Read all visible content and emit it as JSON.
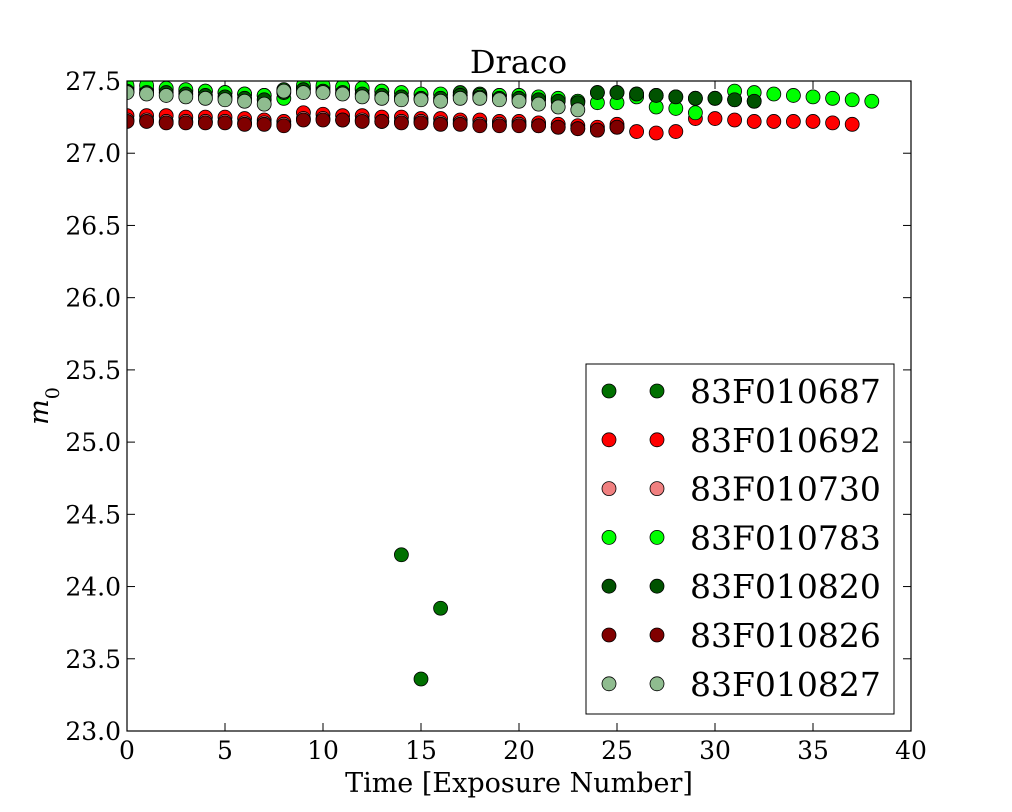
{
  "chart_data": {
    "type": "scatter",
    "title": "Draco",
    "xlabel": "Time [Exposure Number]",
    "ylabel": "m",
    "ylabel_subscript": "0",
    "xlim": [
      0,
      40
    ],
    "ylim": [
      23.0,
      27.5
    ],
    "xticks": [
      "0",
      "5",
      "10",
      "15",
      "20",
      "25",
      "30",
      "35",
      "40"
    ],
    "yticks": [
      "23.0",
      "23.5",
      "24.0",
      "24.5",
      "25.0",
      "25.5",
      "26.0",
      "26.5",
      "27.0",
      "27.5"
    ],
    "grid": false,
    "legend_position": "bottom-right",
    "series": [
      {
        "name": "83F010687",
        "color": "#007000",
        "x": [
          0,
          1,
          2,
          3,
          4,
          5,
          6,
          7,
          8,
          9,
          10,
          11,
          12,
          13,
          14,
          15,
          16,
          17,
          18,
          19,
          20,
          21,
          22,
          23,
          24,
          25,
          26,
          27,
          28,
          29,
          30,
          31,
          32
        ],
        "y": [
          27.45,
          27.44,
          27.44,
          27.43,
          27.43,
          27.42,
          27.41,
          27.4,
          27.44,
          27.45,
          27.45,
          27.44,
          27.44,
          27.43,
          24.22,
          23.36,
          23.85,
          27.42,
          27.41,
          27.4,
          27.4,
          27.38,
          27.37,
          27.36,
          27.42,
          27.42,
          27.41,
          27.4,
          27.39,
          27.38,
          27.38,
          27.37,
          27.36
        ]
      },
      {
        "name": "83F010692",
        "color": "#ff0000",
        "x": [
          0,
          1,
          2,
          3,
          4,
          5,
          6,
          7,
          8,
          9,
          10,
          11,
          12,
          13,
          14,
          15,
          16,
          17,
          18,
          19,
          20,
          21,
          22,
          23,
          24,
          25,
          26,
          27,
          28,
          29,
          30,
          31,
          32,
          33,
          34,
          35,
          36,
          37
        ],
        "y": [
          27.26,
          27.26,
          27.26,
          27.25,
          27.25,
          27.25,
          27.24,
          27.23,
          27.22,
          27.28,
          27.27,
          27.26,
          27.26,
          27.25,
          27.25,
          27.24,
          27.24,
          27.23,
          27.23,
          27.22,
          27.22,
          27.21,
          27.2,
          27.19,
          27.18,
          27.2,
          27.15,
          27.14,
          27.15,
          27.24,
          27.24,
          27.23,
          27.22,
          27.22,
          27.22,
          27.22,
          27.21,
          27.2
        ]
      },
      {
        "name": "83F010730",
        "color": "#f08080",
        "x": [
          0,
          1,
          2,
          3,
          4,
          5,
          6,
          7,
          8,
          9,
          10,
          11,
          12,
          13,
          14,
          15,
          16,
          17,
          18,
          19,
          20,
          21,
          22,
          23,
          24,
          25
        ],
        "y": [
          27.23,
          27.23,
          27.22,
          27.22,
          27.22,
          27.22,
          27.21,
          27.21,
          27.2,
          27.24,
          27.24,
          27.23,
          27.23,
          27.22,
          27.22,
          27.22,
          27.21,
          27.21,
          27.2,
          27.2,
          27.2,
          27.19,
          27.18,
          27.17,
          27.16,
          27.18
        ]
      },
      {
        "name": "83F010783",
        "color": "#00ff00",
        "x": [
          0,
          1,
          2,
          3,
          4,
          5,
          6,
          7,
          8,
          9,
          10,
          11,
          12,
          13,
          14,
          15,
          16,
          17,
          18,
          19,
          20,
          21,
          22,
          23,
          24,
          25,
          26,
          27,
          28,
          29,
          31,
          32,
          33,
          34,
          35,
          36,
          37,
          38
        ],
        "y": [
          27.47,
          27.47,
          27.45,
          27.44,
          27.43,
          27.42,
          27.41,
          27.4,
          27.38,
          27.47,
          27.47,
          27.46,
          27.45,
          27.43,
          27.42,
          27.41,
          27.41,
          27.4,
          27.4,
          27.4,
          27.4,
          27.39,
          27.38,
          27.36,
          27.35,
          27.35,
          27.39,
          27.32,
          27.31,
          27.28,
          27.43,
          27.42,
          27.41,
          27.4,
          27.39,
          27.38,
          27.37,
          27.36
        ]
      },
      {
        "name": "83F010820",
        "color": "#005200",
        "x": [
          0,
          1,
          2,
          3,
          4,
          5,
          6,
          7,
          8,
          9,
          10,
          11,
          12,
          13,
          14,
          15,
          16,
          17,
          18,
          19,
          20,
          21,
          22,
          23,
          24,
          25,
          26,
          27,
          28,
          29,
          30,
          31,
          32
        ],
        "y": [
          27.43,
          27.42,
          27.42,
          27.41,
          27.4,
          27.39,
          27.38,
          27.37,
          27.42,
          27.44,
          27.43,
          27.42,
          27.41,
          27.4,
          27.39,
          27.38,
          27.38,
          27.4,
          27.39,
          27.38,
          27.38,
          27.37,
          27.36,
          27.35,
          27.42,
          27.42,
          27.41,
          27.4,
          27.39,
          27.38,
          27.38,
          27.37,
          27.36
        ]
      },
      {
        "name": "83F010826",
        "color": "#800000",
        "x": [
          0,
          1,
          2,
          3,
          4,
          5,
          6,
          7,
          8,
          9,
          10,
          11,
          12,
          13,
          14,
          15,
          16,
          17,
          18,
          19,
          20,
          21,
          22,
          23,
          24,
          25
        ],
        "y": [
          27.22,
          27.22,
          27.21,
          27.21,
          27.21,
          27.21,
          27.2,
          27.2,
          27.19,
          27.23,
          27.23,
          27.23,
          27.22,
          27.22,
          27.21,
          27.21,
          27.2,
          27.2,
          27.19,
          27.19,
          27.19,
          27.19,
          27.18,
          27.17,
          27.16,
          27.18
        ]
      },
      {
        "name": "83F010827",
        "color": "#8fbc8f",
        "x": [
          0,
          1,
          2,
          3,
          4,
          5,
          6,
          7,
          8,
          9,
          10,
          11,
          12,
          13,
          14,
          15,
          16,
          17,
          18,
          19,
          20,
          21,
          22,
          23
        ],
        "y": [
          27.42,
          27.41,
          27.4,
          27.39,
          27.38,
          27.37,
          27.36,
          27.34,
          27.43,
          27.42,
          27.42,
          27.41,
          27.39,
          27.38,
          27.37,
          27.37,
          27.36,
          27.38,
          27.38,
          27.37,
          27.36,
          27.34,
          27.32,
          27.3
        ]
      }
    ]
  }
}
